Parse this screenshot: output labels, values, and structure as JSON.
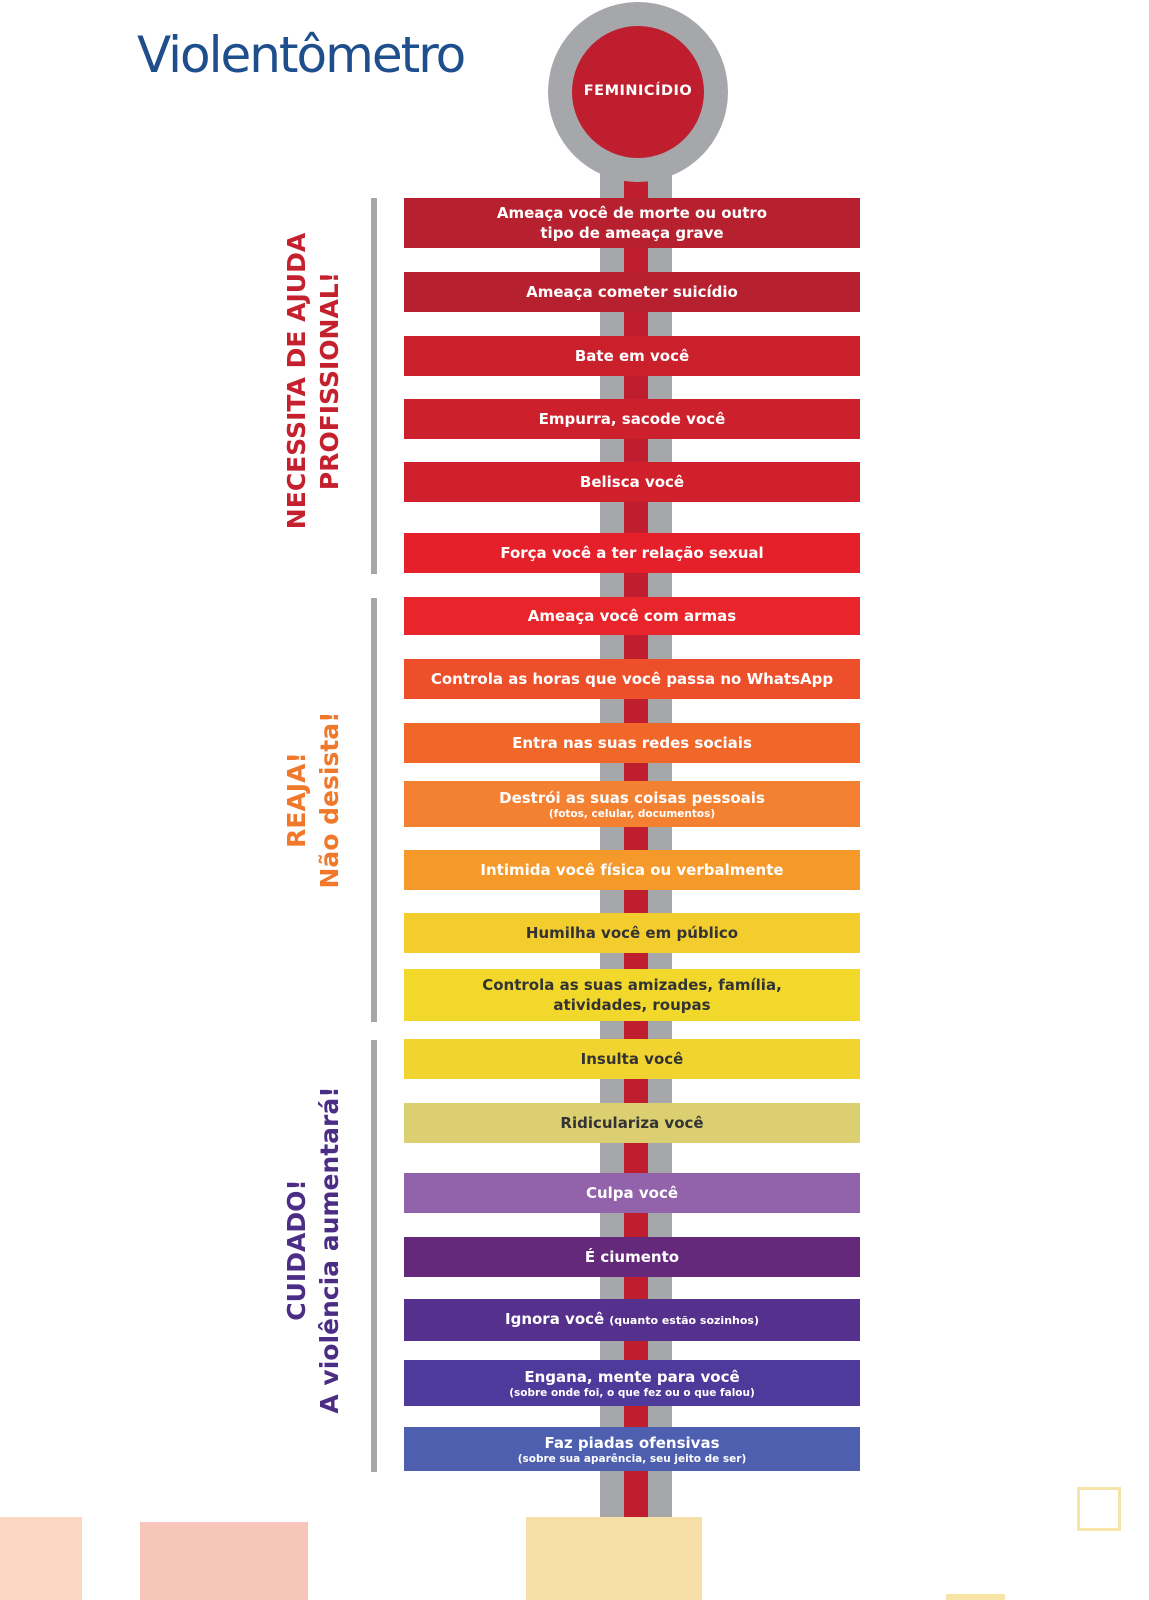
{
  "title": "Violentômetro",
  "bulb_label": "FEMINICÍDIO",
  "sections": {
    "professional": {
      "line1": "NECESSITA DE AJUDA",
      "line2": "PROFISSIONAL!",
      "color": "#c4202e"
    },
    "react": {
      "line1": "REAJA!",
      "line2": "Não desista!",
      "color": "#f0782a"
    },
    "caution": {
      "line1": "CUIDADO!",
      "line2": "A violência aumentará!",
      "color": "#4b2d86"
    }
  },
  "levels": [
    {
      "line1": "Ameaça você de morte ou outro",
      "line2": "tipo de ameaça grave",
      "color": "#b7202e"
    },
    {
      "line1": "Ameaça cometer suicídio",
      "color": "#b7202e"
    },
    {
      "line1": "Bate em você",
      "color": "#c9202c"
    },
    {
      "line1": "Empurra, sacode você",
      "color": "#cc202c"
    },
    {
      "line1": "Belisca você",
      "color": "#d0202c"
    },
    {
      "line1": "Força você a ter relação sexual",
      "color": "#e5202a"
    },
    {
      "line1": "Ameaça você com armas",
      "color": "#e7252a"
    },
    {
      "line1": "Controla as horas que você passa no WhatsApp",
      "color": "#ee4f2b"
    },
    {
      "line1": "Entra nas suas redes sociais",
      "color": "#f1672a"
    },
    {
      "line1": "Destrói as suas coisas pessoais",
      "sub": "(fotos, celular, documentos)",
      "color": "#f48132"
    },
    {
      "line1": "Intimida você física ou verbalmente",
      "color": "#f5992b"
    },
    {
      "line1": "Humilha você em público",
      "color": "#f3cc2d"
    },
    {
      "line1": "Controla as suas amizades, família,",
      "line2": "atividades, roupas",
      "color": "#f3d82c"
    },
    {
      "line1": "Insulta você",
      "color": "#f1d42f"
    },
    {
      "line1": "Ridiculariza você",
      "color": "#dccf72"
    },
    {
      "line1": "Culpa você",
      "color": "#9262aa"
    },
    {
      "line1": "É ciumento",
      "color": "#64297a"
    },
    {
      "line1": "Ignora você",
      "inline_sub": "(quanto estão sozinhos)",
      "color": "#55308c"
    },
    {
      "line1": "Engana, mente para você",
      "sub": "(sobre onde foi, o que fez ou o que falou)",
      "color": "#4e3a9a"
    },
    {
      "line1": "Faz piadas ofensivas",
      "sub": "(sobre sua aparência, seu jeito de ser)",
      "color": "#4d5fae"
    }
  ]
}
